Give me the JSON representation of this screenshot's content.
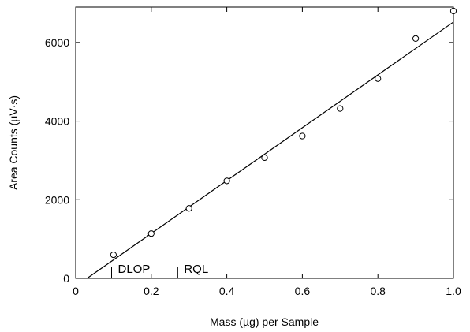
{
  "chart_data": {
    "type": "scatter",
    "xlabel": "Mass (µg) per Sample",
    "ylabel": "Area Counts (µV·s)",
    "xlim": [
      0,
      1.0
    ],
    "ylim": [
      0,
      6900
    ],
    "x_ticks": [
      0,
      0.2,
      0.4,
      0.6,
      0.8,
      1.0
    ],
    "x_tick_labels": [
      "0",
      "0.2",
      "0.4",
      "0.6",
      "0.8",
      "1.0"
    ],
    "y_ticks": [
      0,
      2000,
      4000,
      6000
    ],
    "y_tick_labels": [
      "0",
      "2000",
      "4000",
      "6000"
    ],
    "grid": false,
    "points": {
      "x": [
        0.1,
        0.2,
        0.3,
        0.4,
        0.5,
        0.6,
        0.7,
        0.8,
        0.9,
        1.0
      ],
      "y": [
        600,
        1140,
        1780,
        2480,
        3070,
        3620,
        4320,
        5080,
        6100,
        6800
      ]
    },
    "fit_line": {
      "x": [
        0.03,
        1.0
      ],
      "y": [
        0,
        6520
      ]
    },
    "annotations": [
      {
        "label": "DLOP",
        "x": 0.095
      },
      {
        "label": "RQL",
        "x": 0.27
      }
    ],
    "annotation_marker_height": 300
  }
}
